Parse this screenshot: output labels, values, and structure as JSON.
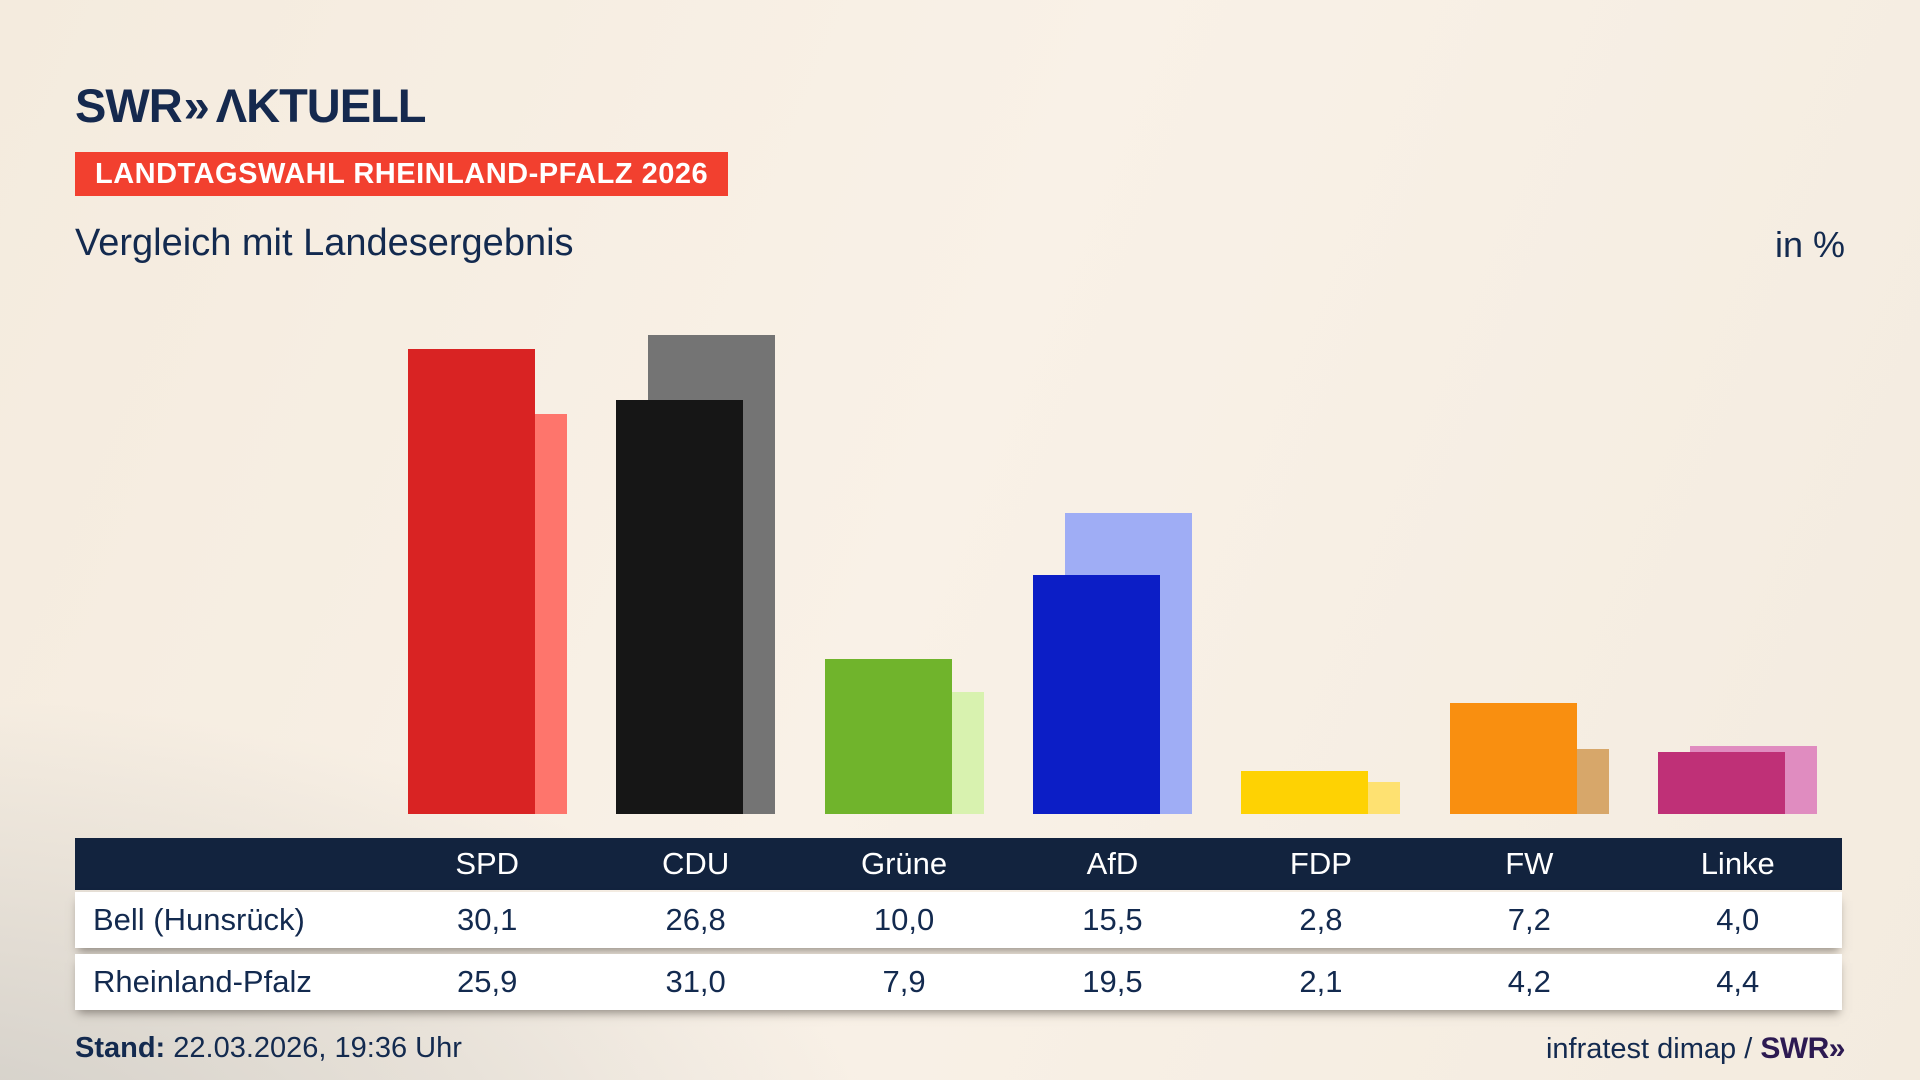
{
  "header": {
    "logo": {
      "brand": "SWR",
      "chevron": "»",
      "suffix": "ΛKTUELL"
    },
    "badge": "LANDTAGSWAHL RHEINLAND-PFALZ 2026",
    "title": "Vergleich mit Landesergebnis",
    "unit_label": "in %"
  },
  "chart_data": {
    "type": "bar",
    "title": "Vergleich mit Landesergebnis",
    "unit": "%",
    "categories": [
      "SPD",
      "CDU",
      "Grüne",
      "AfD",
      "FDP",
      "FW",
      "Linke"
    ],
    "series": [
      {
        "name": "Bell (Hunsrück)",
        "role": "main",
        "values": [
          30.1,
          26.8,
          10.0,
          15.5,
          2.8,
          7.2,
          4.0
        ]
      },
      {
        "name": "Rheinland-Pfalz",
        "role": "compare",
        "values": [
          25.9,
          31.0,
          7.9,
          19.5,
          2.1,
          4.2,
          4.4
        ]
      }
    ],
    "colors_main": [
      "#d92323",
      "#161616",
      "#70b42c",
      "#0c1ec6",
      "#fed203",
      "#f98f10",
      "#bf3077"
    ],
    "colors_compare": [
      "#fe756c",
      "#747474",
      "#d8f2af",
      "#9fadf5",
      "#fee171",
      "#d7a76a",
      "#e08cc0"
    ],
    "ylim": [
      0,
      31
    ],
    "grid": false,
    "legend_position": "table-rows",
    "value_format": "german-decimal-comma"
  },
  "footer": {
    "stand_label": "Stand:",
    "stand_value": " 22.03.2026, 19:36 Uhr",
    "source_text": "infratest dimap / ",
    "source_brand": "SWR»"
  },
  "colors": {
    "accent_red_badge": "#f2402f",
    "navy_text": "#132a4f",
    "table_header_bg": "#12233e",
    "table_row_bg": "#ffffff",
    "footer_brand": "#2d1a52",
    "background_beige": "#f7efe4",
    "background_gray": "#cfccc6"
  }
}
